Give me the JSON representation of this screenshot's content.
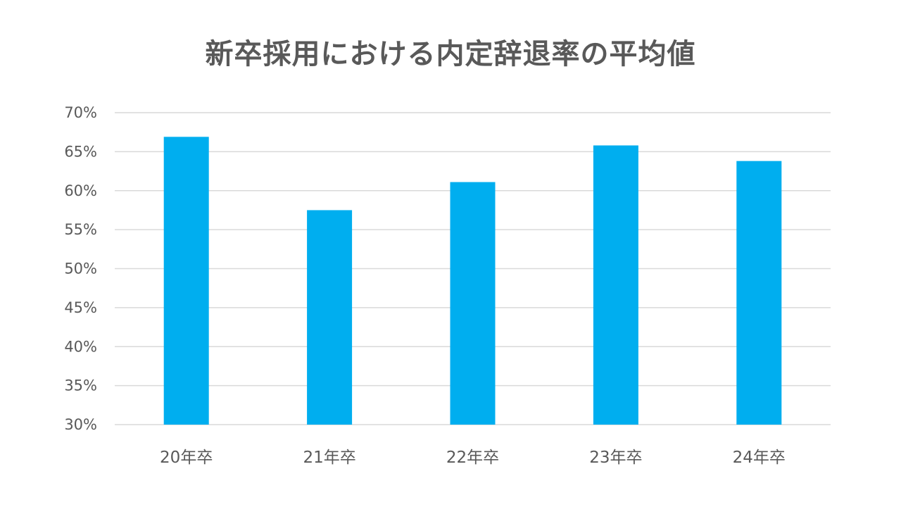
{
  "chart_data": {
    "type": "bar",
    "title": "新卒採用における内定辞退率の平均値",
    "categories": [
      "20年卒",
      "21年卒",
      "22年卒",
      "23年卒",
      "24年卒"
    ],
    "values": [
      66.9,
      57.5,
      61.1,
      65.8,
      63.8
    ],
    "unit": "%",
    "ylim": [
      30,
      70
    ],
    "yticks": [
      30,
      35,
      40,
      45,
      50,
      55,
      60,
      65,
      70
    ],
    "ytick_labels": [
      "30%",
      "35%",
      "40%",
      "45%",
      "50%",
      "55%",
      "60%",
      "65%",
      "70%"
    ],
    "xlabel": "",
    "ylabel": "",
    "grid": true,
    "legend": "none",
    "colors": {
      "bar": "#00AEEF",
      "grid": "#D9D9D9",
      "text": "#595959"
    }
  }
}
